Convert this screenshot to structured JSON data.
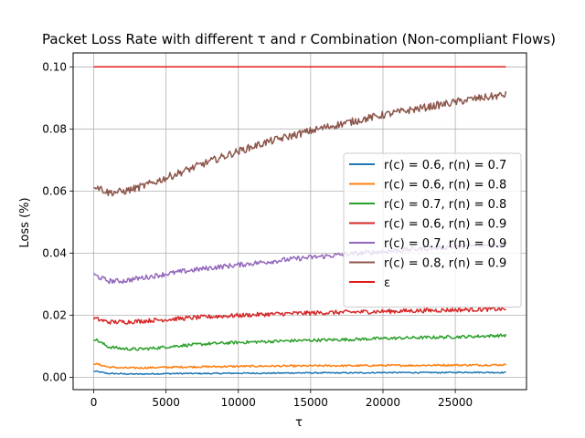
{
  "chart_data": {
    "type": "line",
    "title": "Packet Loss Rate with different τ and r Combination (Non-compliant Flows)",
    "xlabel": "τ",
    "ylabel": "Loss (%)",
    "xlim": [
      -1425,
      29925
    ],
    "ylim": [
      -0.004,
      0.1045
    ],
    "xticks": [
      0,
      5000,
      10000,
      15000,
      20000,
      25000
    ],
    "xtick_labels": [
      "0",
      "5000",
      "10000",
      "15000",
      "20000",
      "25000"
    ],
    "yticks": [
      0.0,
      0.02,
      0.04,
      0.06,
      0.08,
      0.1
    ],
    "ytick_labels": [
      "0.00",
      "0.02",
      "0.04",
      "0.06",
      "0.08",
      "0.10"
    ],
    "grid": true,
    "legend_position": "center-right",
    "series": [
      {
        "name": "r(c) = 0.6, r(n) = 0.7",
        "color": "#1f77b4",
        "x": [
          0,
          1000,
          2000,
          3000,
          4000,
          6000,
          8000,
          10000,
          12000,
          14000,
          16000,
          18000,
          20000,
          22000,
          24000,
          26000,
          28500
        ],
        "y": [
          0.002,
          0.0012,
          0.0011,
          0.001,
          0.0011,
          0.0012,
          0.0012,
          0.0013,
          0.0013,
          0.0014,
          0.0014,
          0.0014,
          0.0015,
          0.0015,
          0.0015,
          0.0016,
          0.0015
        ],
        "noise": 0.0002
      },
      {
        "name": "r(c) = 0.6, r(n) = 0.8",
        "color": "#ff7f0e",
        "x": [
          0,
          1000,
          2000,
          3000,
          4000,
          6000,
          8000,
          10000,
          12000,
          14000,
          16000,
          18000,
          20000,
          22000,
          24000,
          26000,
          28500
        ],
        "y": [
          0.0045,
          0.0033,
          0.003,
          0.003,
          0.0031,
          0.0033,
          0.0034,
          0.0035,
          0.0036,
          0.0036,
          0.0037,
          0.0037,
          0.0038,
          0.0038,
          0.0039,
          0.0039,
          0.004
        ],
        "noise": 0.0003
      },
      {
        "name": "r(c) = 0.7, r(n) = 0.8",
        "color": "#2ca02c",
        "x": [
          0,
          1000,
          2000,
          3000,
          4000,
          6000,
          8000,
          10000,
          12000,
          14000,
          16000,
          18000,
          20000,
          22000,
          24000,
          26000,
          28500
        ],
        "y": [
          0.0125,
          0.0098,
          0.0092,
          0.009,
          0.0093,
          0.0102,
          0.0108,
          0.0112,
          0.0115,
          0.0118,
          0.012,
          0.0122,
          0.0125,
          0.0127,
          0.0129,
          0.0131,
          0.0135
        ],
        "noise": 0.0005
      },
      {
        "name": "r(c) = 0.6, r(n) = 0.9",
        "color": "#d62728",
        "x": [
          0,
          1000,
          2000,
          3000,
          4000,
          6000,
          8000,
          10000,
          12000,
          14000,
          16000,
          18000,
          20000,
          22000,
          24000,
          26000,
          28500
        ],
        "y": [
          0.019,
          0.0178,
          0.0178,
          0.018,
          0.0183,
          0.0189,
          0.0195,
          0.0199,
          0.0203,
          0.0206,
          0.0208,
          0.021,
          0.0212,
          0.0214,
          0.0216,
          0.0218,
          0.022
        ],
        "noise": 0.0007
      },
      {
        "name": "r(c) = 0.7, r(n) = 0.9",
        "color": "#9467bd",
        "x": [
          0,
          1000,
          2000,
          3000,
          4000,
          6000,
          8000,
          10000,
          12000,
          14000,
          16000,
          18000,
          20000,
          22000,
          24000,
          26000,
          28500
        ],
        "y": [
          0.033,
          0.031,
          0.031,
          0.0318,
          0.0325,
          0.034,
          0.0352,
          0.0362,
          0.0372,
          0.0382,
          0.039,
          0.0398,
          0.0405,
          0.0412,
          0.0418,
          0.0423,
          0.0428
        ],
        "noise": 0.0008
      },
      {
        "name": "r(c) = 0.8, r(n) = 0.9",
        "color": "#8c564b",
        "x": [
          0,
          1000,
          2000,
          3000,
          4000,
          6000,
          8000,
          10000,
          12000,
          14000,
          16000,
          18000,
          20000,
          22000,
          24000,
          26000,
          28500
        ],
        "y": [
          0.062,
          0.0595,
          0.0598,
          0.061,
          0.0625,
          0.066,
          0.0695,
          0.0728,
          0.0758,
          0.0782,
          0.0805,
          0.0825,
          0.0845,
          0.0862,
          0.0878,
          0.0895,
          0.091
        ],
        "noise": 0.0012
      },
      {
        "name": "ε",
        "color": "#e31a1c",
        "x": [
          0,
          28500
        ],
        "y": [
          0.1,
          0.1
        ],
        "noise": 0
      }
    ]
  }
}
